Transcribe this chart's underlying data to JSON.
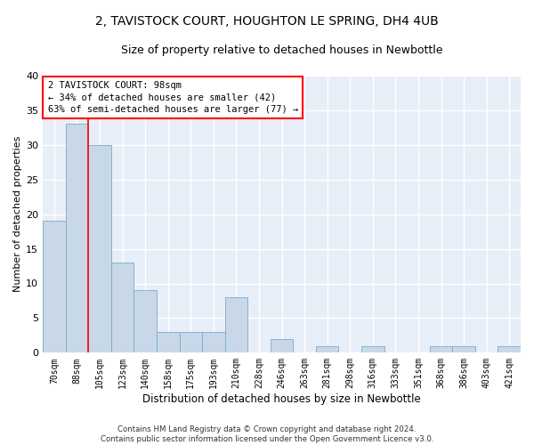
{
  "title": "2, TAVISTOCK COURT, HOUGHTON LE SPRING, DH4 4UB",
  "subtitle": "Size of property relative to detached houses in Newbottle",
  "xlabel": "Distribution of detached houses by size in Newbottle",
  "ylabel": "Number of detached properties",
  "categories": [
    "70sqm",
    "88sqm",
    "105sqm",
    "123sqm",
    "140sqm",
    "158sqm",
    "175sqm",
    "193sqm",
    "210sqm",
    "228sqm",
    "246sqm",
    "263sqm",
    "281sqm",
    "298sqm",
    "316sqm",
    "333sqm",
    "351sqm",
    "368sqm",
    "386sqm",
    "403sqm",
    "421sqm"
  ],
  "values": [
    19,
    33,
    30,
    13,
    9,
    3,
    3,
    3,
    8,
    0,
    2,
    0,
    1,
    0,
    1,
    0,
    0,
    1,
    1,
    0,
    1
  ],
  "bar_color": "#c8d8e8",
  "bar_edge_color": "#7aaac8",
  "redline_x": 1.5,
  "annotation_line1": "2 TAVISTOCK COURT: 98sqm",
  "annotation_line2": "← 34% of detached houses are smaller (42)",
  "annotation_line3": "63% of semi-detached houses are larger (77) →",
  "annotation_box_facecolor": "white",
  "annotation_box_edgecolor": "red",
  "redline_color": "red",
  "ylim": [
    0,
    40
  ],
  "yticks": [
    0,
    5,
    10,
    15,
    20,
    25,
    30,
    35,
    40
  ],
  "background_color": "#e8eef8",
  "grid_color": "white",
  "footer_line1": "Contains HM Land Registry data © Crown copyright and database right 2024.",
  "footer_line2": "Contains public sector information licensed under the Open Government Licence v3.0.",
  "title_fontsize": 10,
  "subtitle_fontsize": 9,
  "xlabel_fontsize": 8.5,
  "ylabel_fontsize": 8,
  "annotation_fontsize": 7.5,
  "tick_fontsize": 7
}
